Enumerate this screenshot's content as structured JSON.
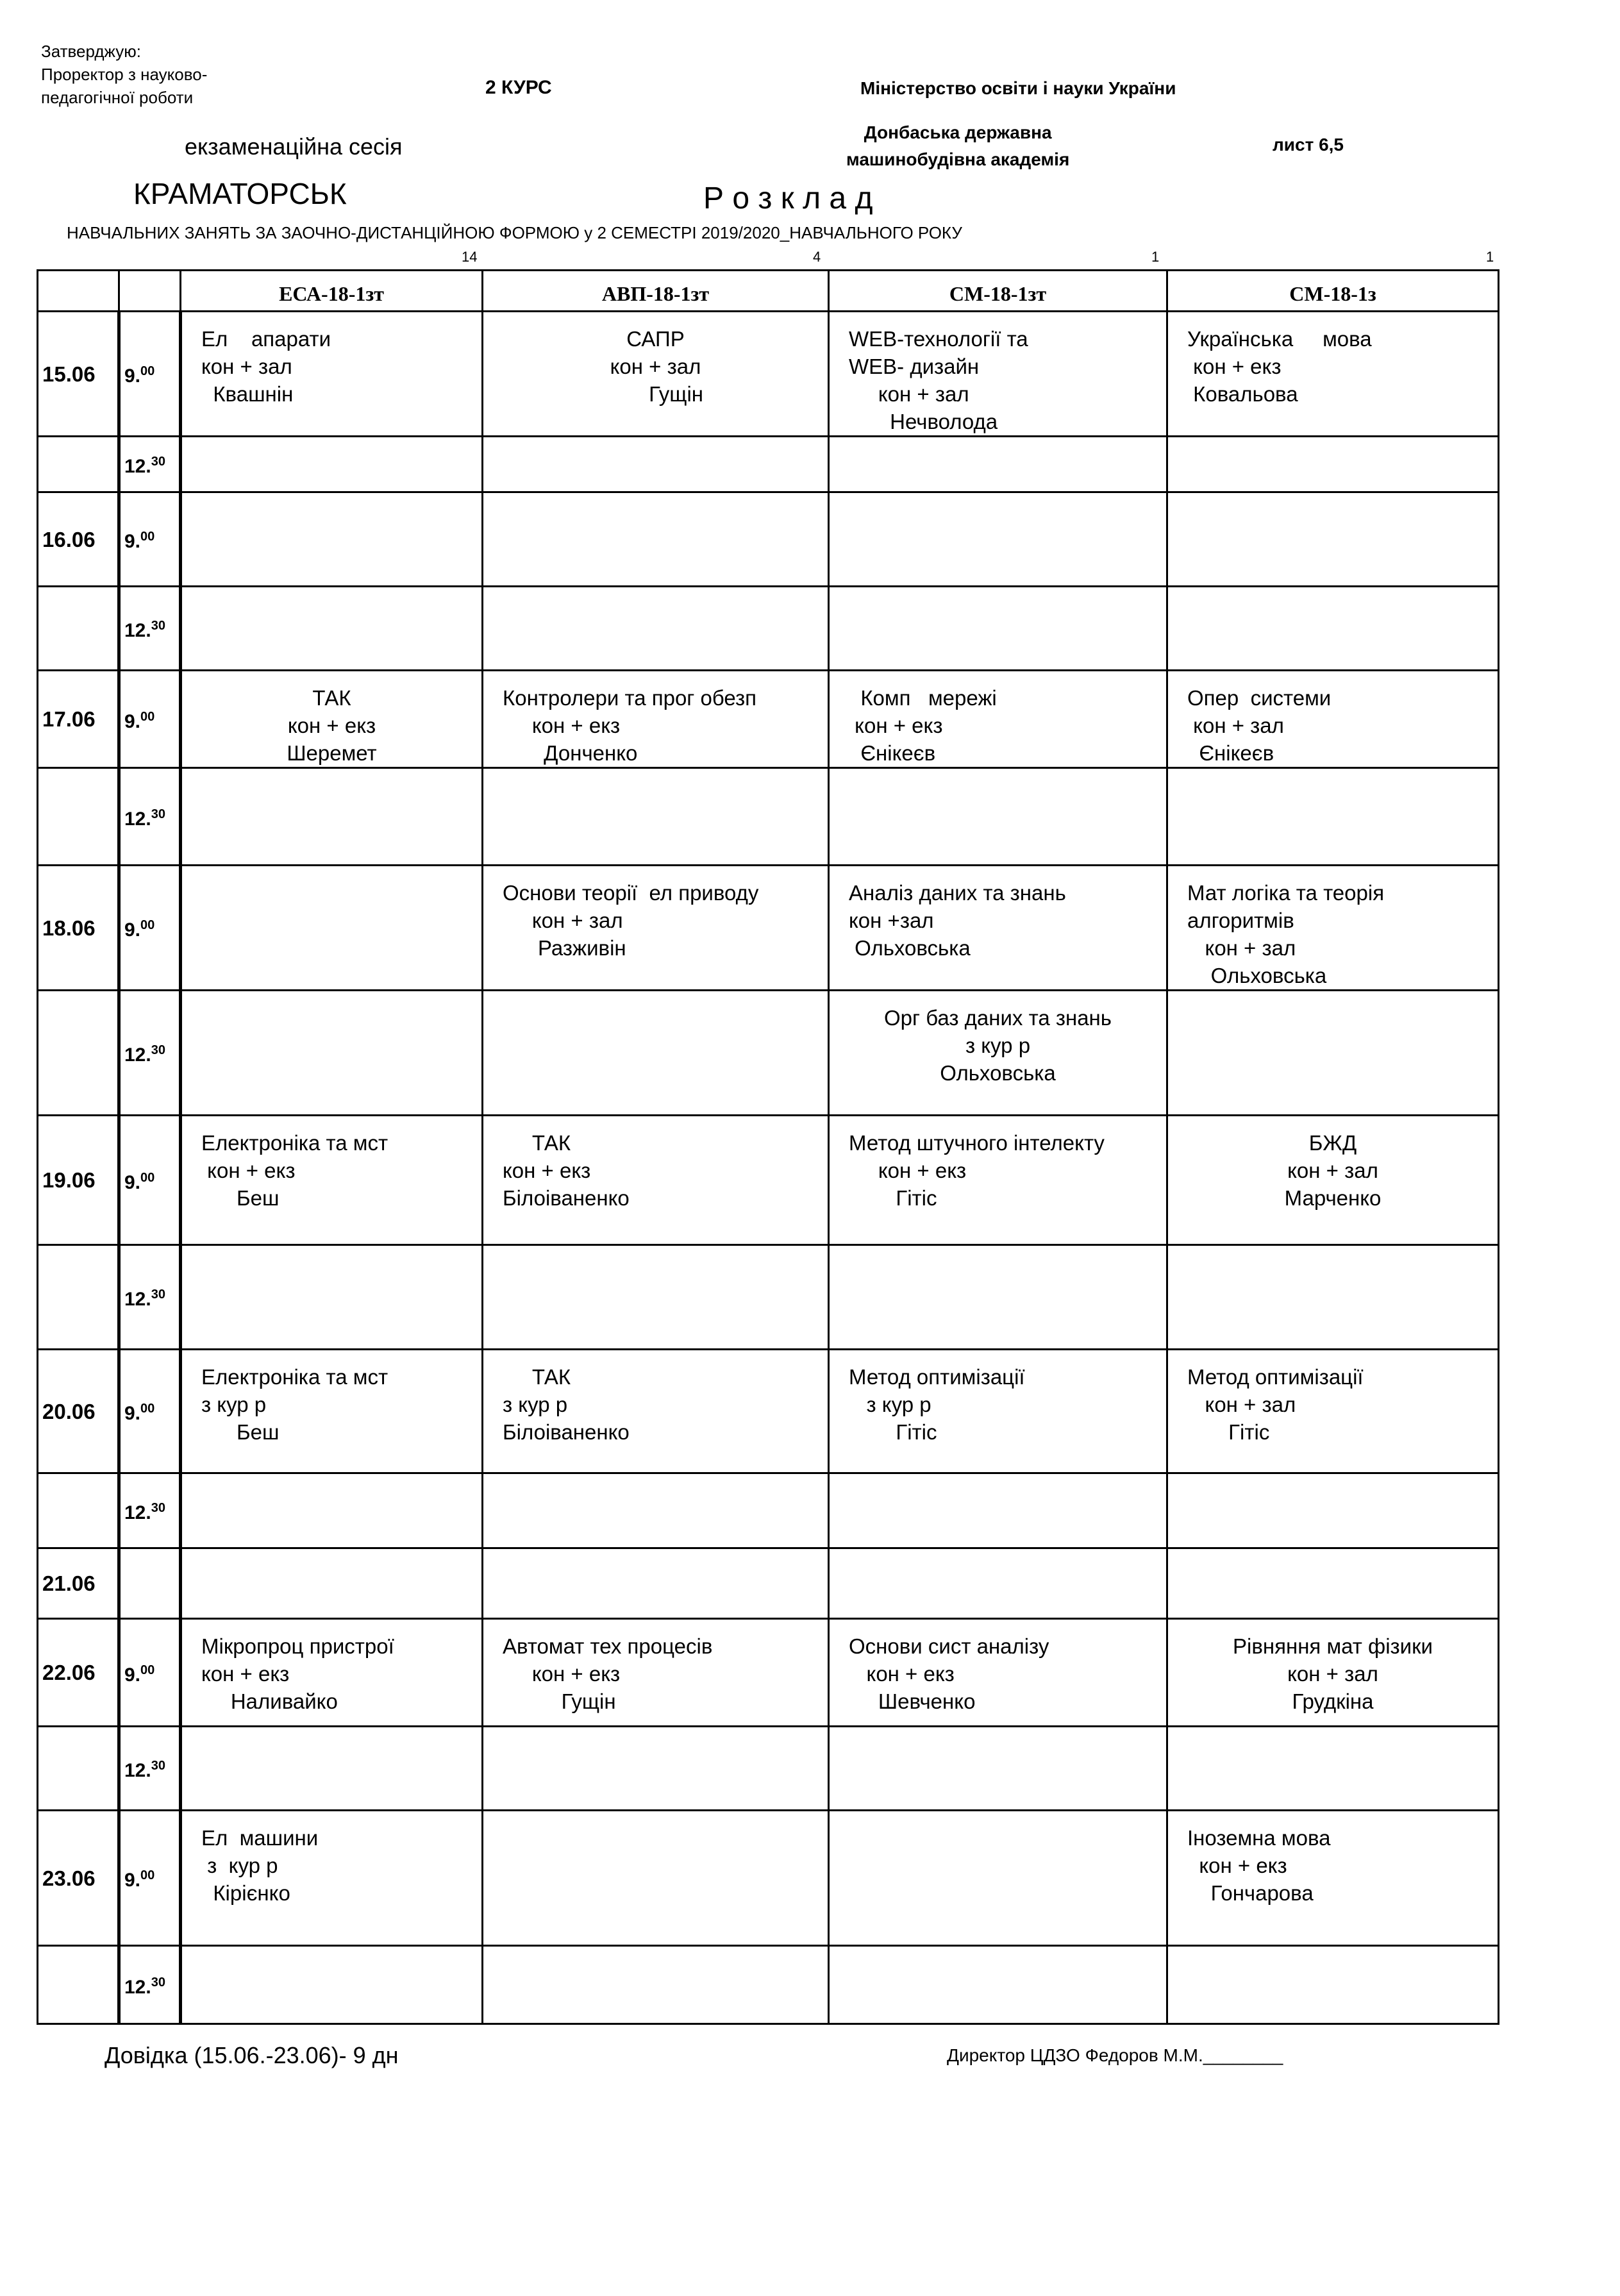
{
  "header": {
    "approve": [
      "Затверджую:",
      "Проректор з науково-",
      "педагогічної роботи"
    ],
    "course": "2 КУРС",
    "ministry": "Міністерство освіти і науки України",
    "academy": [
      "Донбаська державна",
      "машинобудівна академія"
    ],
    "session": "екзаменаційна  сесія",
    "sheet": "лист 6,5",
    "city": "КРАМАТОРСЬК",
    "title": "Р о з к л а д",
    "subtitle": "НАВЧАЛЬНИХ ЗАНЯТЬ  ЗА ЗАОЧНО-ДИСТАНЦІЙНОЮ ФОРМОЮ у 2 СЕМЕСТРІ  2019/2020_НАВЧАЛЬНОГО РОКУ",
    "counts": [
      "14",
      "4",
      "1",
      "1"
    ]
  },
  "table": {
    "groups": [
      "ЕСА-18-1зт",
      "АВП-18-1зт",
      "СМ-18-1зт",
      "СМ-18-1з"
    ],
    "rows": [
      {
        "date": "15.06",
        "time": "9.",
        "time_sup": "00",
        "cells": [
          [
            "Ел    апарати",
            "кон + зал",
            "  Квашнін"
          ],
          [
            "САПР",
            "кон + зал",
            "       Гущін"
          ],
          [
            "WEB-технології та",
            "WEB- дизайн",
            "     кон + зал",
            "       Нечволода"
          ],
          [
            "Українська     мова",
            " кон + екз",
            " Ковальова"
          ]
        ]
      },
      {
        "date": "",
        "time": "12.",
        "time_sup": "30",
        "cells": [
          [],
          [],
          [],
          []
        ]
      },
      {
        "date": "16.06",
        "time": "9.",
        "time_sup": "00",
        "cells": [
          [],
          [],
          [],
          []
        ]
      },
      {
        "date": "",
        "time": "12.",
        "time_sup": "30",
        "cells": [
          [],
          [],
          [],
          []
        ]
      },
      {
        "date": "17.06",
        "time": "9.",
        "time_sup": "00",
        "cells": [
          [
            "ТАК",
            "кон + екз",
            "Шеремет"
          ],
          [
            "Контролери та прог обезп",
            "     кон + екз",
            "       Донченко"
          ],
          [
            "  Комп   мережі",
            " кон + екз",
            "  Єнікеєв"
          ],
          [
            "Опер  системи",
            " кон + зал",
            "  Єнікеєв"
          ]
        ]
      },
      {
        "date": "",
        "time": "12.",
        "time_sup": "30",
        "cells": [
          [],
          [],
          [],
          []
        ]
      },
      {
        "date": "18.06",
        "time": "9.",
        "time_sup": "00",
        "cells": [
          [],
          [
            "Основи теорії  ел приводу",
            "     кон + зал",
            "      Разживін"
          ],
          [
            "Аналіз даних та знань",
            "кон +зал",
            " Ольховська"
          ],
          [
            "Мат логіка та теорія",
            "алгоритмів",
            "   кон + зал",
            "    Ольховська"
          ]
        ]
      },
      {
        "date": "",
        "time": "12.",
        "time_sup": "30",
        "cells": [
          [],
          [],
          [
            "Орг баз даних та знань",
            "з кур р",
            "Ольховська"
          ],
          []
        ]
      },
      {
        "date": "19.06",
        "time": "9.",
        "time_sup": "00",
        "cells": [
          [
            "Електроніка та мст",
            " кон + екз",
            "      Беш"
          ],
          [
            "     ТАК",
            "кон + екз",
            "Білоіваненко"
          ],
          [
            "Метод штучного інтелекту",
            "     кон + екз",
            "        Гітіс"
          ],
          [
            "БЖД",
            "кон + зал",
            "Марченко"
          ]
        ]
      },
      {
        "date": "",
        "time": "12.",
        "time_sup": "30",
        "cells": [
          [],
          [],
          [],
          []
        ]
      },
      {
        "date": "20.06",
        "time": "9.",
        "time_sup": "00",
        "cells": [
          [
            "Електроніка та мст",
            "з кур р",
            "      Беш"
          ],
          [
            "     ТАК",
            "з кур р",
            "Білоіваненко"
          ],
          [
            "Метод оптимізації",
            "   з кур р",
            "        Гітіс"
          ],
          [
            "Метод оптимізації",
            "   кон + зал",
            "       Гітіс"
          ]
        ]
      },
      {
        "date": "",
        "time": "12.",
        "time_sup": "30",
        "cells": [
          [],
          [],
          [],
          []
        ]
      },
      {
        "date": "21.06",
        "time": "",
        "time_sup": "",
        "cells": [
          [],
          [],
          [],
          []
        ]
      },
      {
        "date": "22.06",
        "time": "9.",
        "time_sup": "00",
        "cells": [
          [
            "Мікропроц пристрої",
            "кон + екз",
            "     Наливайко"
          ],
          [
            "Автомат тех процесів",
            "     кон + екз",
            "          Гущін"
          ],
          [
            "Основи сист аналізу",
            "   кон + екз",
            "     Шевченко"
          ],
          [
            "Рівняння мат фізики",
            "кон + зал",
            "Грудкіна"
          ]
        ]
      },
      {
        "date": "",
        "time": "12.",
        "time_sup": "30",
        "cells": [
          [],
          [],
          [],
          []
        ]
      },
      {
        "date": "23.06",
        "time": "9.",
        "time_sup": "00",
        "cells": [
          [
            "Ел  машини",
            " з  кур р",
            "  Кірієнко"
          ],
          [],
          [],
          [
            "Іноземна мова",
            "  кон + екз",
            "    Гончарова"
          ]
        ]
      },
      {
        "date": "",
        "time": "12.",
        "time_sup": "30",
        "cells": [
          [],
          [],
          [],
          []
        ]
      }
    ]
  },
  "footer": {
    "note": "Довідка   (15.06.-23.06)-  9 дн",
    "director": "Директор   ЦДЗО   Федоров М.М.________"
  }
}
